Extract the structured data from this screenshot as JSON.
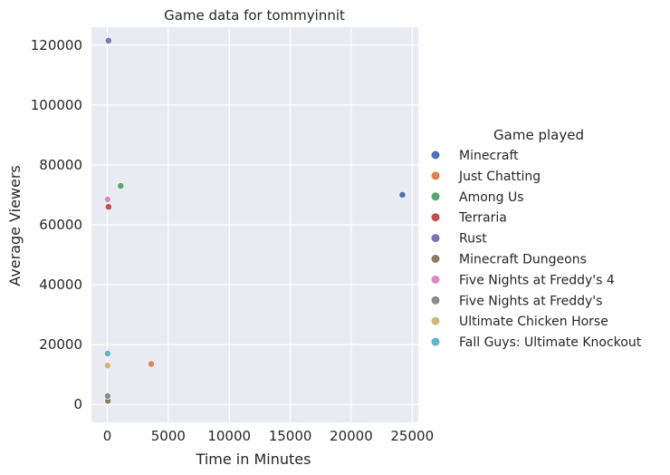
{
  "chart_data": {
    "type": "scatter",
    "title": "Game data for tommyinnit",
    "xlabel": "Time in Minutes",
    "ylabel": "Average Viewers",
    "xlim": [
      -1300,
      25500
    ],
    "ylim": [
      -6000,
      126000
    ],
    "x_ticks": [
      0,
      5000,
      10000,
      15000,
      20000,
      25000
    ],
    "x_tick_labels": [
      "0",
      "5000",
      "10000",
      "15000",
      "20000",
      "25000"
    ],
    "y_ticks": [
      0,
      20000,
      40000,
      60000,
      80000,
      100000,
      120000
    ],
    "y_tick_labels": [
      "0",
      "20000",
      "40000",
      "60000",
      "80000",
      "100000",
      "120000"
    ],
    "grid": true,
    "legend_title": "Game played",
    "legend_position": "right",
    "series": [
      {
        "name": "Minecraft",
        "color": "#4c72b0",
        "points": [
          {
            "x": 24200,
            "y": 70000
          }
        ]
      },
      {
        "name": "Just Chatting",
        "color": "#dd8452",
        "points": [
          {
            "x": 3600,
            "y": 13500
          }
        ]
      },
      {
        "name": "Among Us",
        "color": "#55a868",
        "points": [
          {
            "x": 1100,
            "y": 73000
          }
        ]
      },
      {
        "name": "Terraria",
        "color": "#c44e52",
        "points": [
          {
            "x": 100,
            "y": 66000
          }
        ]
      },
      {
        "name": "Rust",
        "color": "#8172b3",
        "points": [
          {
            "x": 100,
            "y": 121500
          }
        ]
      },
      {
        "name": "Minecraft Dungeons",
        "color": "#937860",
        "points": [
          {
            "x": 50,
            "y": 1200
          }
        ]
      },
      {
        "name": "Five Nights at Freddy's 4",
        "color": "#da8bc3",
        "points": [
          {
            "x": 30,
            "y": 68500
          }
        ]
      },
      {
        "name": "Five Nights at Freddy's",
        "color": "#8c8c8c",
        "points": [
          {
            "x": 30,
            "y": 2800
          }
        ]
      },
      {
        "name": "Ultimate Chicken Horse",
        "color": "#ccb974",
        "points": [
          {
            "x": 30,
            "y": 13000
          }
        ]
      },
      {
        "name": "Fall Guys: Ultimate Knockout",
        "color": "#64b5cd",
        "points": [
          {
            "x": 30,
            "y": 17000
          }
        ]
      }
    ]
  }
}
